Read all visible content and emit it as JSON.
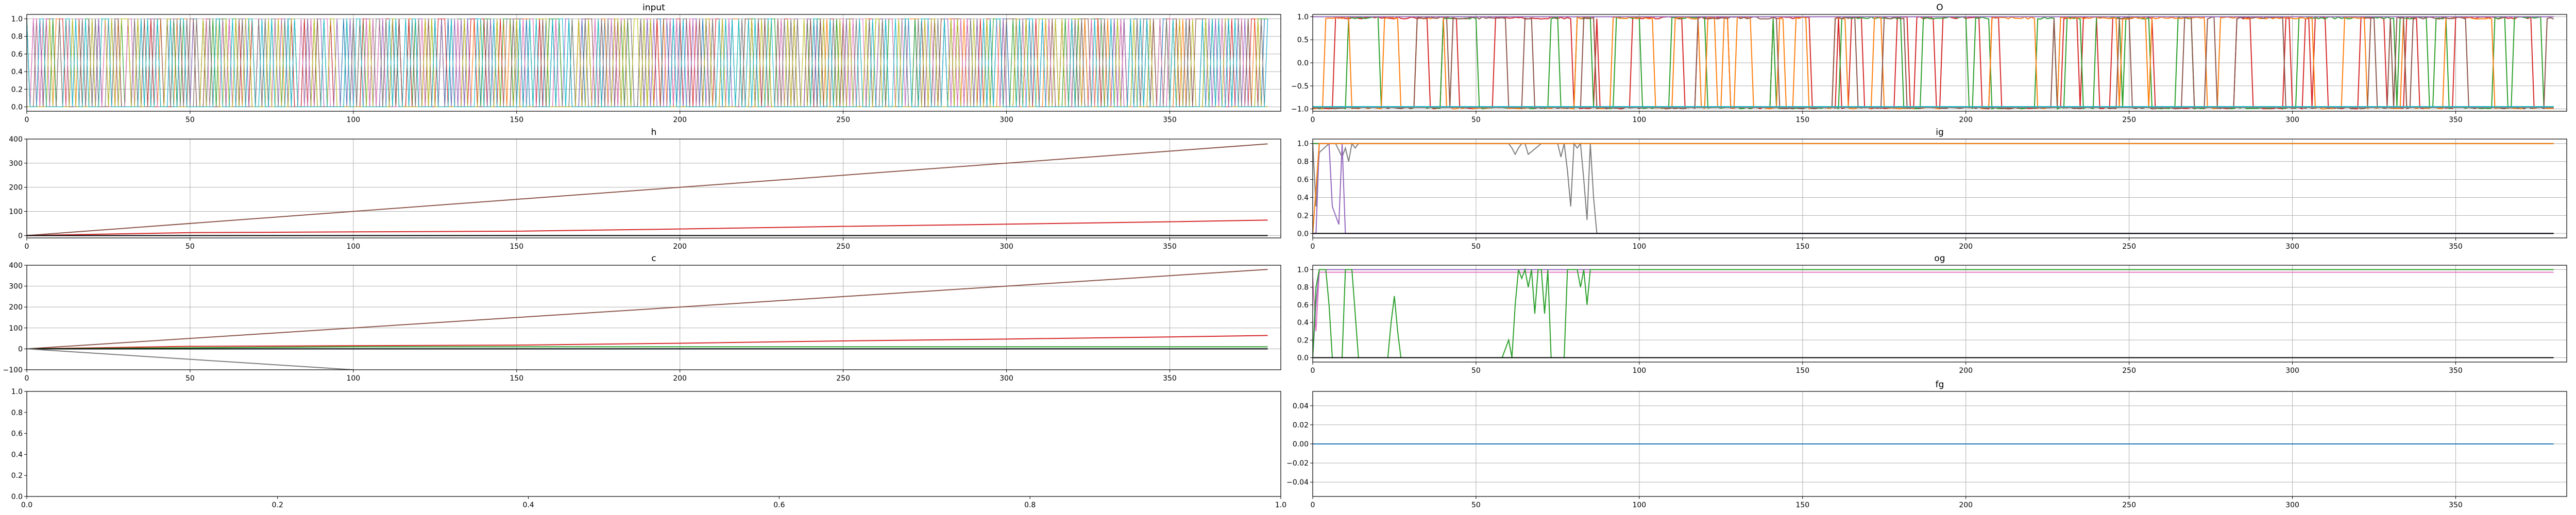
{
  "chart_data": [
    {
      "type": "line",
      "title": "input",
      "xlim": [
        0,
        384
      ],
      "ylim": [
        -0.05,
        1.05
      ],
      "xticks": [
        0,
        50,
        100,
        150,
        200,
        250,
        300,
        350
      ],
      "yticks": [
        0.0,
        0.2,
        0.4,
        0.6,
        0.8,
        1.0
      ],
      "ytick_labels": [
        "0.0",
        "0.2",
        "0.4",
        "0.6",
        "0.8",
        "1.0"
      ],
      "grid": true,
      "n_steps": 380,
      "description_of_series": "many one-hot binary series (0/1) switching at nearly every step",
      "series_colors": [
        "#1f77b4",
        "#ff7f0e",
        "#2ca02c",
        "#d62728",
        "#9467bd",
        "#8c564b",
        "#e377c2",
        "#7f7f7f",
        "#bcbd22",
        "#17becf"
      ]
    },
    {
      "type": "line",
      "title": "O",
      "xlim": [
        0,
        384
      ],
      "ylim": [
        -1.05,
        1.05
      ],
      "xticks": [
        0,
        50,
        100,
        150,
        200,
        250,
        300,
        350
      ],
      "yticks": [
        -1.0,
        -0.5,
        0.0,
        0.5,
        1.0
      ],
      "ytick_labels": [
        "−1.0",
        "−0.5",
        "0.0",
        "0.5",
        "1.0"
      ],
      "grid": true,
      "series": [
        {
          "color": "#d62728",
          "range": [
            -1,
            1
          ],
          "behavior": "switching"
        },
        {
          "color": "#2ca02c",
          "range": [
            -1,
            1
          ],
          "behavior": "switching"
        },
        {
          "color": "#ff7f0e",
          "range": [
            -1,
            1
          ],
          "behavior": "switching"
        },
        {
          "color": "#8c564b",
          "range": [
            -1,
            1
          ],
          "behavior": "switching"
        },
        {
          "color": "#e377c2",
          "constant": 1.0
        },
        {
          "color": "#9467bd",
          "constant": 1.0
        },
        {
          "color": "#1f77b4",
          "constant": -0.95
        },
        {
          "color": "#17becf",
          "constant": -0.95
        },
        {
          "color": "#7f7f7f",
          "constant": -0.97
        }
      ]
    },
    {
      "type": "line",
      "title": "h",
      "xlim": [
        0,
        384
      ],
      "ylim": [
        -10,
        400
      ],
      "xticks": [
        0,
        50,
        100,
        150,
        200,
        250,
        300,
        350
      ],
      "yticks": [
        0,
        100,
        200,
        300,
        400
      ],
      "ytick_labels": [
        "0",
        "100",
        "200",
        "300",
        "400"
      ],
      "grid": true,
      "series": [
        {
          "color": "#8c564b",
          "x": [
            0,
            380
          ],
          "y": [
            0,
            380
          ]
        },
        {
          "color": "#d62728",
          "x": [
            0,
            50,
            100,
            150,
            200,
            250,
            300,
            350,
            380
          ],
          "y": [
            0,
            12,
            15,
            18,
            27,
            38,
            47,
            57,
            64
          ]
        },
        {
          "color": "#000000",
          "x": [
            0,
            380
          ],
          "y": [
            0,
            0
          ]
        }
      ]
    },
    {
      "type": "line",
      "title": "ig",
      "xlim": [
        0,
        384
      ],
      "ylim": [
        -0.05,
        1.05
      ],
      "xticks": [
        0,
        50,
        100,
        150,
        200,
        250,
        300,
        350
      ],
      "yticks": [
        0.0,
        0.2,
        0.4,
        0.6,
        0.8,
        1.0
      ],
      "ytick_labels": [
        "0.0",
        "0.2",
        "0.4",
        "0.6",
        "0.8",
        "1.0"
      ],
      "grid": true,
      "series": [
        {
          "color": "#d62728",
          "constant": 1.0
        },
        {
          "color": "#2ca02c",
          "constant": 1.0
        },
        {
          "color": "#7f7f7f",
          "x": [
            0,
            1,
            2,
            5,
            7,
            9,
            10,
            11,
            12,
            13,
            14,
            60,
            61,
            62,
            63,
            64,
            65,
            66,
            70,
            75,
            76,
            77,
            78,
            79,
            80,
            81,
            82,
            83,
            84,
            85,
            86,
            87,
            88,
            380
          ],
          "y": [
            1,
            0.3,
            0.9,
            1,
            1,
            0.85,
            0.95,
            0.8,
            1,
            0.95,
            1,
            1,
            0.95,
            0.88,
            0.95,
            1,
            1,
            0.88,
            1,
            1,
            0.85,
            1,
            0.7,
            0.3,
            1,
            0.95,
            1,
            0.6,
            0.15,
            1,
            0.4,
            0,
            0,
            0
          ]
        },
        {
          "color": "#9467bd",
          "x": [
            0,
            1,
            2,
            5,
            6,
            8,
            9,
            10,
            380
          ],
          "y": [
            0,
            0,
            1,
            1,
            0.3,
            0.1,
            1,
            0,
            0
          ]
        },
        {
          "color": "#ff7f0e",
          "x": [
            0,
            1,
            2,
            380
          ],
          "y": [
            0,
            0.5,
            1,
            1
          ]
        },
        {
          "color": "#000000",
          "constant": 0.0
        }
      ]
    },
    {
      "type": "line",
      "title": "c",
      "xlim": [
        0,
        384
      ],
      "ylim": [
        -100,
        400
      ],
      "xticks": [
        0,
        50,
        100,
        150,
        200,
        250,
        300,
        350
      ],
      "yticks": [
        -100,
        0,
        100,
        200,
        300,
        400
      ],
      "ytick_labels": [
        "−100",
        "0",
        "100",
        "200",
        "300",
        "400"
      ],
      "grid": true,
      "series": [
        {
          "color": "#8c564b",
          "x": [
            0,
            380
          ],
          "y": [
            0,
            380
          ]
        },
        {
          "color": "#d62728",
          "x": [
            0,
            50,
            100,
            150,
            200,
            250,
            300,
            350,
            380
          ],
          "y": [
            0,
            12,
            15,
            18,
            27,
            38,
            47,
            57,
            64
          ]
        },
        {
          "color": "#1f77b4",
          "x": [
            0,
            380
          ],
          "y": [
            0,
            0
          ]
        },
        {
          "color": "#2ca02c",
          "x": [
            0,
            100,
            380
          ],
          "y": [
            0,
            10,
            10
          ]
        },
        {
          "color": "#000000",
          "x": [
            0,
            380
          ],
          "y": [
            0,
            0
          ]
        },
        {
          "color": "#7f7f7f",
          "x": [
            0,
            100
          ],
          "y": [
            0,
            -100
          ]
        }
      ]
    },
    {
      "type": "line",
      "title": "og",
      "xlim": [
        0,
        384
      ],
      "ylim": [
        -0.05,
        1.05
      ],
      "xticks": [
        0,
        50,
        100,
        150,
        200,
        250,
        300,
        350
      ],
      "yticks": [
        0.0,
        0.2,
        0.4,
        0.6,
        0.8,
        1.0
      ],
      "ytick_labels": [
        "0.0",
        "0.2",
        "0.4",
        "0.6",
        "0.8",
        "1.0"
      ],
      "grid": true,
      "series": [
        {
          "color": "#e377c2",
          "x": [
            0,
            1,
            2,
            380
          ],
          "y": [
            0.9,
            0.3,
            0.97,
            0.97
          ]
        },
        {
          "color": "#9467bd",
          "x": [
            0,
            1,
            2,
            3,
            380
          ],
          "y": [
            0,
            0.6,
            1,
            1,
            1
          ]
        },
        {
          "color": "#2ca02c",
          "x": [
            0,
            1,
            2,
            3,
            4,
            5,
            6,
            8,
            9,
            10,
            12,
            13,
            14,
            20,
            22,
            23,
            24,
            25,
            26,
            27,
            28,
            29,
            58,
            59,
            60,
            61,
            62,
            63,
            64,
            65,
            66,
            67,
            68,
            69,
            70,
            71,
            72,
            73,
            74,
            75,
            76,
            77,
            78,
            79,
            80,
            81,
            82,
            83,
            84,
            85,
            86,
            380
          ],
          "y": [
            0,
            0.8,
            1,
            1,
            1,
            0.6,
            0,
            0,
            0,
            1,
            1,
            0.5,
            0,
            0,
            0,
            0,
            0.4,
            0.7,
            0.3,
            0,
            0,
            0,
            0,
            0.1,
            0.2,
            0,
            0.6,
            1,
            0.9,
            1,
            0.8,
            1,
            0.5,
            1,
            1,
            0.5,
            1,
            0,
            0,
            0,
            0,
            0,
            1,
            1,
            1,
            1,
            0.8,
            1,
            0.6,
            1,
            1,
            1
          ]
        },
        {
          "color": "#000000",
          "constant": 0.0
        }
      ]
    },
    {
      "type": "line",
      "title": "",
      "xlim": [
        0,
        1
      ],
      "ylim": [
        0,
        1
      ],
      "xticks": [
        0.0,
        0.2,
        0.4,
        0.6,
        0.8,
        1.0
      ],
      "xtick_labels": [
        "0.0",
        "0.2",
        "0.4",
        "0.6",
        "0.8",
        "1.0"
      ],
      "yticks": [
        0.0,
        0.2,
        0.4,
        0.6,
        0.8,
        1.0
      ],
      "ytick_labels": [
        "0.0",
        "0.2",
        "0.4",
        "0.6",
        "0.8",
        "1.0"
      ],
      "grid": false,
      "series": []
    },
    {
      "type": "line",
      "title": "fg",
      "xlim": [
        0,
        384
      ],
      "ylim": [
        -0.055,
        0.055
      ],
      "xticks": [
        0,
        50,
        100,
        150,
        200,
        250,
        300,
        350
      ],
      "yticks": [
        -0.04,
        -0.02,
        0.0,
        0.02,
        0.04
      ],
      "ytick_labels": [
        "−0.04",
        "−0.02",
        "0.00",
        "0.02",
        "0.04"
      ],
      "grid": true,
      "series": [
        {
          "color": "#1f77b4",
          "constant": 0.0
        }
      ]
    }
  ]
}
